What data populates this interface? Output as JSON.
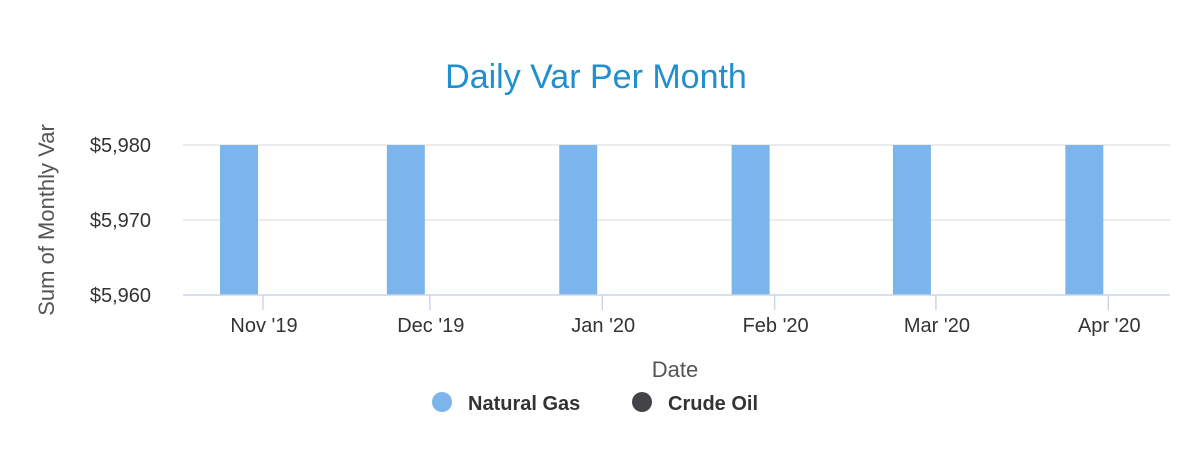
{
  "colors": {
    "title": "#1f8fd0",
    "natural_gas": "#7cb5ec",
    "crude_oil": "#434348",
    "grid": "#e6e6e6",
    "axis_line": "#ccd6eb"
  },
  "chart_data": {
    "type": "bar",
    "title": "Daily Var Per Month",
    "xlabel": "Date",
    "ylabel": "Sum of Monthly Var",
    "categories": [
      "Nov '19",
      "Dec '19",
      "Jan '20",
      "Feb '20",
      "Mar '20",
      "Apr '20"
    ],
    "ylim": [
      5960,
      5980
    ],
    "yticks": [
      "$5,960",
      "$5,970",
      "$5,980"
    ],
    "grid": true,
    "legend_position": "bottom-center",
    "series": [
      {
        "name": "Natural Gas",
        "values": [
          5980,
          5980,
          5980,
          5980,
          5980,
          5980
        ]
      },
      {
        "name": "Crude Oil",
        "values": [
          null,
          null,
          null,
          null,
          null,
          null
        ]
      }
    ]
  }
}
